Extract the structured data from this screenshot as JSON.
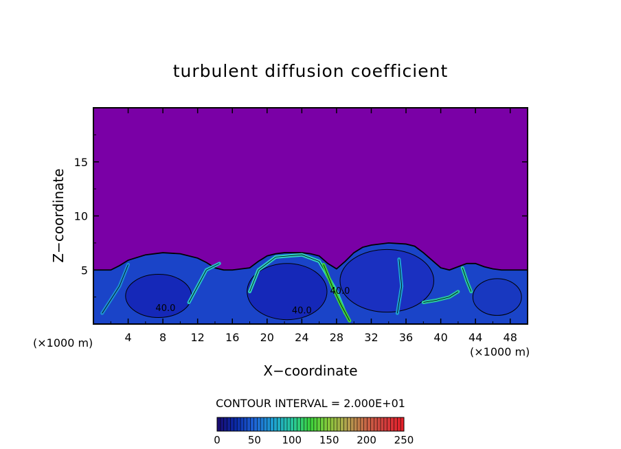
{
  "chart_data": {
    "type": "heatmap",
    "title": "turbulent diffusion coefficient",
    "xlabel": "X−coordinate",
    "ylabel": "Z−coordinate",
    "x_unit_left": "(×1000 m)",
    "x_unit_right": "(×1000 m)",
    "xlim": [
      0,
      50
    ],
    "ylim": [
      0,
      20
    ],
    "x_ticks": [
      4,
      8,
      12,
      16,
      20,
      24,
      28,
      32,
      36,
      40,
      44,
      48
    ],
    "y_ticks": [
      5,
      10,
      15
    ],
    "contour_interval_text": "CONTOUR INTERVAL = 2.000E+01",
    "contour_labels": [
      {
        "text": "40.0",
        "x": 8.3,
        "z": 1.2
      },
      {
        "text": "40.0",
        "x": 24.0,
        "z": 1.0
      },
      {
        "text": "40.0",
        "x": 28.4,
        "z": 2.8
      }
    ],
    "colorbar": {
      "min": 0,
      "max": 250,
      "ticks": [
        0,
        50,
        100,
        150,
        200,
        250
      ],
      "colors": [
        "#1a0a6e",
        "#0a2aa8",
        "#1e64d6",
        "#1ea0d2",
        "#28c8a0",
        "#3cd23c",
        "#8cc83c",
        "#b4a050",
        "#c86446",
        "#d23c3c",
        "#e61e28"
      ]
    },
    "background_value_color": "#7a00a6",
    "top_boundary": {
      "x": [
        0,
        2,
        3,
        4,
        6,
        8,
        10,
        12,
        13,
        14,
        15,
        16,
        18,
        19,
        20,
        21,
        22,
        24,
        25,
        26,
        27,
        28,
        29,
        30,
        31,
        32,
        34,
        36,
        37,
        38,
        39,
        40,
        41,
        42,
        43,
        44,
        45,
        46,
        47,
        48,
        49,
        50
      ],
      "z": [
        5.0,
        5.0,
        5.4,
        5.9,
        6.4,
        6.6,
        6.5,
        6.1,
        5.7,
        5.2,
        5.0,
        5.0,
        5.2,
        5.8,
        6.3,
        6.5,
        6.6,
        6.6,
        6.5,
        6.3,
        5.6,
        5.1,
        5.8,
        6.6,
        7.1,
        7.3,
        7.5,
        7.4,
        7.2,
        6.6,
        5.9,
        5.2,
        5.0,
        5.3,
        5.6,
        5.6,
        5.3,
        5.1,
        5.0,
        5.0,
        5.0,
        5.0
      ]
    }
  }
}
